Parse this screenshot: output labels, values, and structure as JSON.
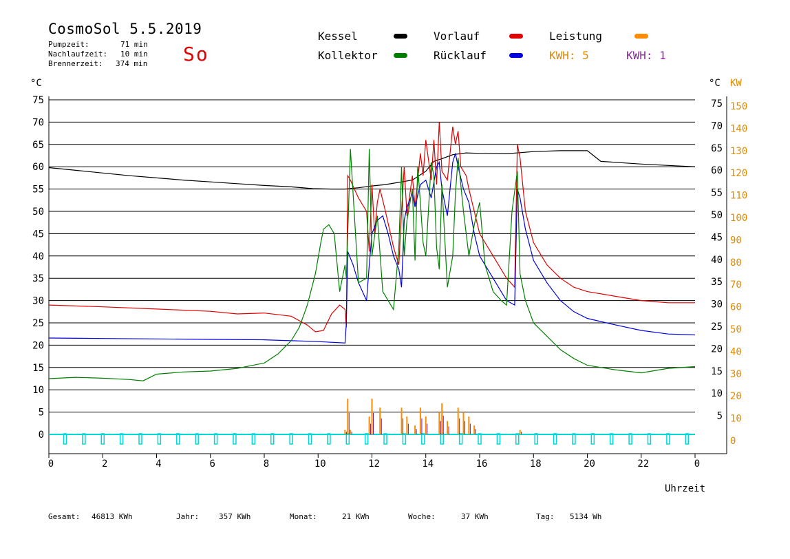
{
  "header": {
    "title": "CosmoSol 5.5.2019",
    "day": "So",
    "stats": [
      {
        "label": "Pumpzeit:",
        "value": "71 min"
      },
      {
        "label": "Nachlaufzeit:",
        "value": "10 min"
      },
      {
        "label": "Brennerzeit:",
        "value": "374 min"
      }
    ]
  },
  "legend": [
    {
      "label": "Kessel",
      "color": "#000000"
    },
    {
      "label": "Kollektor",
      "color": "#007f00"
    },
    {
      "label": "Vorlauf",
      "color": "#e00000"
    },
    {
      "label": "Rücklauf",
      "color": "#0000e0"
    },
    {
      "label": "Leistung",
      "color": "#ff8c00"
    }
  ],
  "kwh": [
    {
      "label": "KWH: 5",
      "color": "#e08a00"
    },
    {
      "label": "KWH: 1",
      "color": "#8a2a9a"
    }
  ],
  "footer": [
    {
      "label": "Gesamt:",
      "value": "46813 KWh"
    },
    {
      "label": "Jahr:",
      "value": "357 KWh"
    },
    {
      "label": "Monat:",
      "value": "21 KWh"
    },
    {
      "label": "Woche:",
      "value": "37 KWh"
    },
    {
      "label": "Tag:",
      "value": "5134 Wh"
    }
  ],
  "chart_data": {
    "type": "line",
    "left_unit": "°C",
    "right_unit_c": "°C",
    "right_unit_kw": "KW",
    "xlabel": "Uhrzeit",
    "xlim": [
      0,
      24
    ],
    "ylim": [
      0,
      75
    ],
    "x_ticks": [
      "0",
      "2",
      "4",
      "6",
      "8",
      "10",
      "12",
      "14",
      "16",
      "18",
      "20",
      "22",
      "0"
    ],
    "y_ticks": [
      0,
      5,
      10,
      15,
      20,
      25,
      30,
      35,
      40,
      45,
      50,
      55,
      60,
      65,
      70,
      75
    ],
    "y2_ticks_c": [
      5,
      10,
      15,
      20,
      25,
      30,
      35,
      40,
      45,
      50,
      55,
      60,
      65,
      70,
      75
    ],
    "y2_ticks_kw": [
      0,
      10,
      20,
      30,
      40,
      50,
      60,
      70,
      80,
      90,
      100,
      110,
      120,
      130,
      140,
      150
    ],
    "grid": true,
    "series": [
      {
        "name": "Kessel",
        "color": "#000000",
        "x": [
          0,
          1,
          2,
          3,
          4,
          5,
          6,
          7,
          8,
          9,
          9.8,
          10.5,
          11.0,
          11.5,
          12.0,
          12.5,
          13.0,
          13.5,
          14.0,
          14.3,
          14.6,
          15.0,
          15.5,
          16.0,
          17.0,
          18.0,
          19.0,
          20.0,
          20.5,
          21.0,
          22.0,
          23.0,
          24.0
        ],
        "y": [
          59.8,
          59.2,
          58.6,
          58.0,
          57.5,
          57.0,
          56.6,
          56.2,
          55.8,
          55.5,
          55.1,
          55.0,
          55.0,
          55.3,
          55.7,
          56.0,
          56.5,
          57.0,
          59.0,
          61.2,
          61.8,
          62.7,
          63.1,
          63.0,
          62.9,
          63.4,
          63.6,
          63.6,
          61.2,
          61.0,
          60.6,
          60.3,
          60.0
        ]
      },
      {
        "name": "Vorlauf",
        "color": "#e00000",
        "x": [
          0,
          2,
          4,
          6,
          7,
          8,
          9,
          9.6,
          9.9,
          10.2,
          10.5,
          10.8,
          11.0,
          11.05,
          11.1,
          11.2,
          11.5,
          11.8,
          11.9,
          12.0,
          12.1,
          12.2,
          12.3,
          12.5,
          12.8,
          13.0,
          13.1,
          13.2,
          13.3,
          13.5,
          13.6,
          13.8,
          13.9,
          14.0,
          14.2,
          14.3,
          14.4,
          14.5,
          14.6,
          14.8,
          15.0,
          15.1,
          15.2,
          15.3,
          15.5,
          15.6,
          15.8,
          16.0,
          16.5,
          17.0,
          17.3,
          17.4,
          17.5,
          17.7,
          18.0,
          18.5,
          19.0,
          19.5,
          20.0,
          21.0,
          22.0,
          23.0,
          24.0
        ],
        "y": [
          29.0,
          28.6,
          28.1,
          27.6,
          27.0,
          27.2,
          26.5,
          24.5,
          23.0,
          23.3,
          27.0,
          29.0,
          28.0,
          24.0,
          58.0,
          57.0,
          53.0,
          50.0,
          41.0,
          56.0,
          45.0,
          52.0,
          55.0,
          50.0,
          42.0,
          38.0,
          50.0,
          60.0,
          49.0,
          58.0,
          51.0,
          63.0,
          58.0,
          66.0,
          57.0,
          66.0,
          56.0,
          70.0,
          59.0,
          57.0,
          69.0,
          65.0,
          68.0,
          60.0,
          58.0,
          55.0,
          50.0,
          45.0,
          40.0,
          35.0,
          33.0,
          65.0,
          62.0,
          50.0,
          43.0,
          38.0,
          35.0,
          33.0,
          32.0,
          31.0,
          30.0,
          29.5,
          29.5
        ]
      },
      {
        "name": "Rücklauf",
        "color": "#0000e0",
        "x": [
          0,
          2,
          4,
          6,
          8,
          9,
          10,
          11.0,
          11.05,
          11.1,
          11.3,
          11.5,
          11.8,
          11.9,
          12.0,
          12.2,
          12.4,
          12.6,
          12.8,
          13.0,
          13.1,
          13.2,
          13.3,
          13.5,
          13.6,
          13.8,
          14.0,
          14.2,
          14.4,
          14.5,
          14.6,
          14.8,
          15.0,
          15.1,
          15.2,
          15.4,
          15.6,
          15.8,
          16.0,
          16.5,
          17.0,
          17.3,
          17.4,
          17.5,
          17.7,
          18.0,
          18.5,
          19.0,
          19.5,
          20.0,
          21.0,
          22.0,
          23.0,
          24.0
        ],
        "y": [
          21.6,
          21.5,
          21.4,
          21.3,
          21.2,
          21.0,
          20.8,
          20.5,
          25.0,
          41.0,
          38.0,
          34.0,
          30.0,
          38.0,
          45.0,
          48.0,
          49.0,
          45.0,
          40.0,
          37.0,
          33.0,
          48.0,
          51.0,
          54.0,
          51.0,
          56.0,
          57.0,
          53.0,
          60.0,
          61.0,
          55.0,
          49.0,
          61.0,
          63.0,
          60.0,
          55.0,
          52.0,
          45.0,
          40.0,
          35.0,
          30.0,
          29.0,
          55.0,
          53.0,
          46.0,
          39.0,
          34.0,
          30.0,
          27.5,
          26.0,
          24.6,
          23.3,
          22.5,
          22.3
        ]
      },
      {
        "name": "Kollektor",
        "color": "#007f00",
        "x": [
          0,
          1,
          2,
          3,
          3.5,
          4,
          5,
          6,
          7,
          8,
          8.5,
          9,
          9.3,
          9.6,
          9.9,
          10.1,
          10.2,
          10.4,
          10.6,
          10.8,
          11.0,
          11.05,
          11.2,
          11.5,
          11.8,
          11.9,
          12.0,
          12.2,
          12.4,
          12.6,
          12.8,
          13.0,
          13.1,
          13.2,
          13.3,
          13.5,
          13.6,
          13.7,
          13.8,
          13.9,
          14.0,
          14.2,
          14.3,
          14.4,
          14.5,
          14.6,
          14.8,
          15.0,
          15.1,
          15.2,
          15.4,
          15.6,
          15.8,
          16.0,
          16.2,
          16.5,
          16.8,
          17.0,
          17.2,
          17.4,
          17.5,
          17.7,
          18.0,
          18.5,
          19.0,
          19.5,
          20.0,
          21.0,
          22.0,
          23.0,
          24.0
        ],
        "y": [
          12.5,
          12.8,
          12.6,
          12.3,
          12.0,
          13.5,
          14.0,
          14.2,
          14.8,
          16.0,
          18.0,
          21.0,
          24.0,
          29.0,
          36.0,
          43.0,
          46.0,
          47.0,
          45.0,
          32.0,
          38.0,
          35.0,
          64.0,
          34.0,
          35.0,
          64.0,
          40.0,
          49.0,
          32.0,
          30.0,
          28.0,
          42.0,
          60.0,
          40.0,
          48.0,
          55.0,
          39.0,
          60.0,
          52.0,
          43.0,
          40.0,
          61.0,
          58.0,
          42.0,
          37.0,
          56.0,
          33.0,
          40.0,
          54.0,
          62.0,
          50.0,
          40.0,
          47.0,
          52.0,
          38.0,
          32.0,
          30.0,
          29.0,
          50.0,
          59.0,
          36.0,
          30.0,
          25.0,
          22.0,
          19.0,
          17.0,
          15.5,
          14.5,
          13.8,
          14.8,
          15.2
        ]
      },
      {
        "name": "Leistung",
        "color": "#ff8c00",
        "x": [
          11.0,
          11.1,
          11.2,
          11.9,
          12.0,
          12.3,
          13.1,
          13.3,
          13.6,
          13.8,
          14.0,
          14.5,
          14.6,
          14.8,
          15.2,
          15.4,
          15.6,
          15.8,
          17.5
        ],
        "y": [
          1,
          8,
          1,
          4,
          8,
          6,
          6,
          4,
          2,
          6,
          4,
          5,
          7,
          3,
          6,
          5,
          4,
          2,
          1
        ]
      }
    ]
  }
}
